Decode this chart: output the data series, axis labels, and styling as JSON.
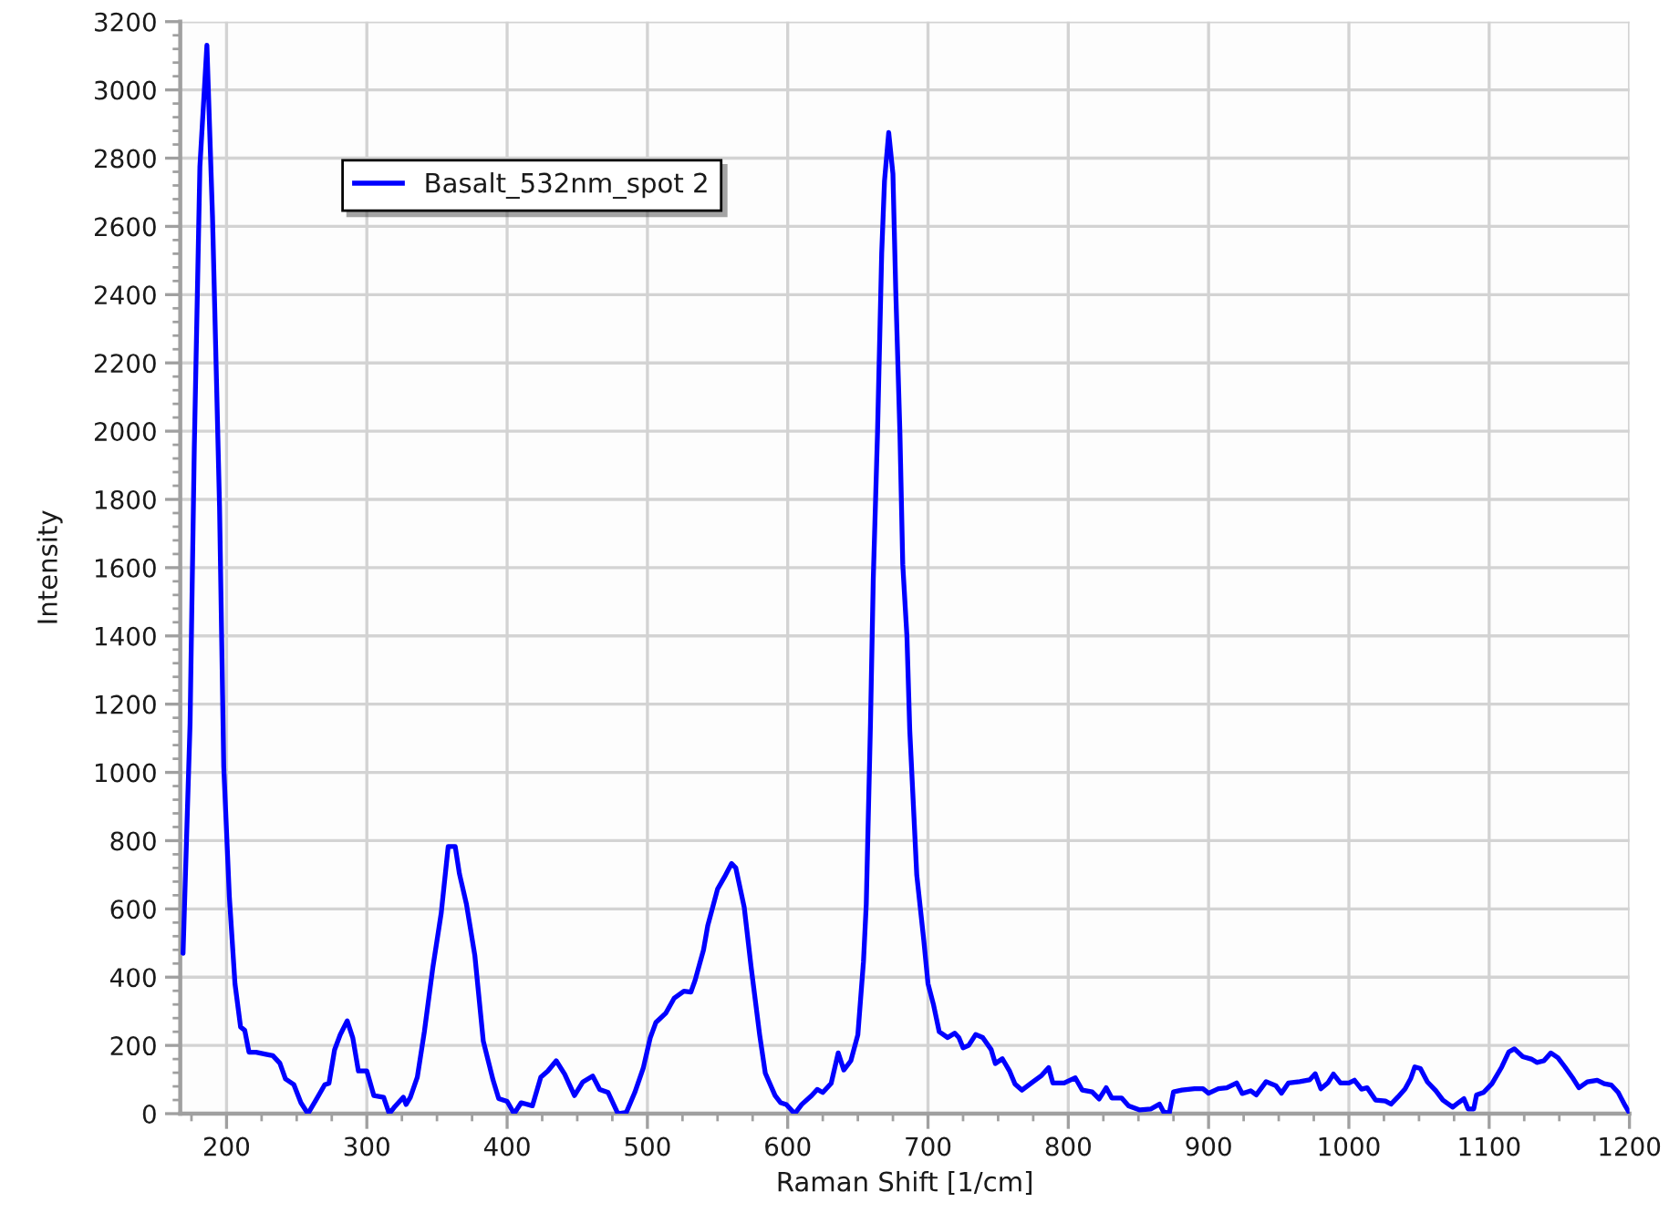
{
  "chart_data": {
    "type": "line",
    "xlabel": "Raman Shift [1/cm]",
    "ylabel": "Intensity",
    "legend": "top left",
    "grid": true,
    "xlim": [
      167,
      1200
    ],
    "ylim": [
      0,
      3200
    ],
    "xticks": [
      {
        "value": 175,
        "label": null
      },
      200,
      {
        "value": 225,
        "label": null
      },
      {
        "value": 250,
        "label": null
      },
      {
        "value": 275,
        "label": null
      },
      300,
      {
        "value": 325,
        "label": null
      },
      {
        "value": 350,
        "label": null
      },
      {
        "value": 375,
        "label": null
      },
      400,
      {
        "value": 425,
        "label": null
      },
      {
        "value": 450,
        "label": null
      },
      {
        "value": 475,
        "label": null
      },
      500,
      {
        "value": 525,
        "label": null
      },
      {
        "value": 550,
        "label": null
      },
      {
        "value": 575,
        "label": null
      },
      600,
      {
        "value": 625,
        "label": null
      },
      {
        "value": 650,
        "label": null
      },
      {
        "value": 675,
        "label": null
      },
      700,
      {
        "value": 725,
        "label": null
      },
      {
        "value": 750,
        "label": null
      },
      {
        "value": 775,
        "label": null
      },
      800,
      {
        "value": 825,
        "label": null
      },
      {
        "value": 850,
        "label": null
      },
      {
        "value": 875,
        "label": null
      },
      900,
      {
        "value": 925,
        "label": null
      },
      {
        "value": 950,
        "label": null
      },
      {
        "value": 975,
        "label": null
      },
      1000,
      {
        "value": 1025,
        "label": null
      },
      {
        "value": 1050,
        "label": null
      },
      {
        "value": 1075,
        "label": null
      },
      1100,
      {
        "value": 1125,
        "label": null
      },
      {
        "value": 1150,
        "label": null
      },
      {
        "value": 1175,
        "label": null
      },
      1200
    ],
    "yticks": [
      0,
      {
        "value": 40,
        "label": null
      },
      {
        "value": 80,
        "label": null
      },
      {
        "value": 120,
        "label": null
      },
      {
        "value": 160,
        "label": null
      },
      200,
      {
        "value": 240,
        "label": null
      },
      {
        "value": 280,
        "label": null
      },
      {
        "value": 320,
        "label": null
      },
      {
        "value": 360,
        "label": null
      },
      400,
      {
        "value": 440,
        "label": null
      },
      {
        "value": 480,
        "label": null
      },
      {
        "value": 520,
        "label": null
      },
      {
        "value": 560,
        "label": null
      },
      600,
      {
        "value": 640,
        "label": null
      },
      {
        "value": 680,
        "label": null
      },
      {
        "value": 720,
        "label": null
      },
      {
        "value": 760,
        "label": null
      },
      800,
      {
        "value": 840,
        "label": null
      },
      {
        "value": 880,
        "label": null
      },
      {
        "value": 920,
        "label": null
      },
      {
        "value": 960,
        "label": null
      },
      1000,
      {
        "value": 1040,
        "label": null
      },
      {
        "value": 1080,
        "label": null
      },
      {
        "value": 1120,
        "label": null
      },
      {
        "value": 1160,
        "label": null
      },
      1200,
      {
        "value": 1240,
        "label": null
      },
      {
        "value": 1280,
        "label": null
      },
      {
        "value": 1320,
        "label": null
      },
      {
        "value": 1360,
        "label": null
      },
      1400,
      {
        "value": 1440,
        "label": null
      },
      {
        "value": 1480,
        "label": null
      },
      {
        "value": 1520,
        "label": null
      },
      {
        "value": 1560,
        "label": null
      },
      1600,
      {
        "value": 1640,
        "label": null
      },
      {
        "value": 1680,
        "label": null
      },
      {
        "value": 1720,
        "label": null
      },
      {
        "value": 1760,
        "label": null
      },
      1800,
      {
        "value": 1840,
        "label": null
      },
      {
        "value": 1880,
        "label": null
      },
      {
        "value": 1920,
        "label": null
      },
      {
        "value": 1960,
        "label": null
      },
      2000,
      {
        "value": 2040,
        "label": null
      },
      {
        "value": 2080,
        "label": null
      },
      {
        "value": 2120,
        "label": null
      },
      {
        "value": 2160,
        "label": null
      },
      2200,
      {
        "value": 2240,
        "label": null
      },
      {
        "value": 2280,
        "label": null
      },
      {
        "value": 2320,
        "label": null
      },
      {
        "value": 2360,
        "label": null
      },
      2400,
      {
        "value": 2440,
        "label": null
      },
      {
        "value": 2480,
        "label": null
      },
      {
        "value": 2520,
        "label": null
      },
      {
        "value": 2560,
        "label": null
      },
      2600,
      {
        "value": 2640,
        "label": null
      },
      {
        "value": 2680,
        "label": null
      },
      {
        "value": 2720,
        "label": null
      },
      {
        "value": 2760,
        "label": null
      },
      2800,
      {
        "value": 2840,
        "label": null
      },
      {
        "value": 2880,
        "label": null
      },
      {
        "value": 2920,
        "label": null
      },
      {
        "value": 2960,
        "label": null
      },
      3000,
      {
        "value": 3040,
        "label": null
      },
      {
        "value": 3080,
        "label": null
      },
      {
        "value": 3120,
        "label": null
      },
      {
        "value": 3160,
        "label": null
      },
      3200
    ],
    "x": [
      169,
      174,
      177,
      181,
      186,
      190,
      195,
      198,
      202,
      206,
      210,
      213,
      216,
      221,
      228,
      233,
      238,
      242,
      248,
      253,
      258,
      264,
      270,
      273,
      277,
      281,
      286,
      290,
      294,
      300,
      305,
      312,
      316,
      320,
      326,
      328,
      331,
      336,
      341,
      347,
      353,
      358,
      363,
      366,
      371,
      377,
      383,
      390,
      394,
      400,
      405,
      410,
      418,
      424,
      429,
      435,
      441,
      448,
      454,
      461,
      466,
      472,
      479,
      485,
      491,
      497,
      502,
      506,
      513,
      519,
      526,
      531,
      534,
      540,
      543,
      550,
      555,
      560,
      563,
      569,
      574,
      580,
      584,
      591,
      595,
      599,
      605,
      610,
      617,
      621,
      625,
      631,
      636,
      640,
      645,
      650,
      654,
      656,
      659,
      661,
      664,
      667,
      669,
      672,
      675,
      677,
      680,
      682,
      685,
      687,
      690,
      692,
      697,
      700,
      704,
      708,
      714,
      719,
      722,
      725,
      729,
      734,
      739,
      745,
      748,
      753,
      758,
      762,
      767,
      775,
      781,
      786,
      789,
      797,
      805,
      810,
      817,
      822,
      827,
      831,
      838,
      843,
      851,
      859,
      865,
      868,
      872,
      875,
      881,
      890,
      896,
      900,
      907,
      913,
      920,
      924,
      930,
      934,
      941,
      948,
      952,
      957,
      965,
      972,
      976,
      980,
      985,
      989,
      994,
      1000,
      1004,
      1009,
      1013,
      1019,
      1026,
      1030,
      1035,
      1040,
      1044,
      1047,
      1051,
      1056,
      1062,
      1067,
      1074,
      1078,
      1082,
      1085,
      1089,
      1091,
      1096,
      1102,
      1109,
      1114,
      1118,
      1124,
      1130,
      1134,
      1139,
      1144,
      1149,
      1154,
      1160,
      1164,
      1170,
      1177,
      1182,
      1187,
      1192,
      1197,
      1200
    ],
    "series": [
      {
        "name": "Basalt_532nm_spot 2",
        "color": "#0000ff",
        "values": [
          470,
          1144,
          1949,
          2775,
          3131,
          2627,
          1780,
          1017,
          636,
          381,
          254,
          244,
          180,
          180,
          174,
          170,
          148,
          102,
          85,
          32,
          0,
          42,
          85,
          89,
          187,
          231,
          272,
          222,
          125,
          125,
          53,
          48,
          0,
          21,
          48,
          27,
          48,
          107,
          240,
          427,
          587,
          783,
          783,
          703,
          614,
          463,
          213,
          98,
          44,
          36,
          0,
          32,
          23,
          107,
          125,
          155,
          116,
          53,
          93,
          110,
          71,
          62,
          0,
          4,
          62,
          133,
          222,
          267,
          294,
          338,
          359,
          356,
          391,
          480,
          551,
          658,
          694,
          733,
          720,
          605,
          427,
          231,
          119,
          53,
          32,
          27,
          0,
          27,
          53,
          71,
          62,
          89,
          178,
          128,
          155,
          231,
          445,
          614,
          1144,
          1568,
          1992,
          2522,
          2733,
          2875,
          2754,
          2415,
          1992,
          1610,
          1398,
          1123,
          869,
          699,
          508,
          381,
          318,
          240,
          223,
          236,
          223,
          193,
          200,
          232,
          223,
          188,
          147,
          161,
          126,
          87,
          69,
          94,
          112,
          135,
          90,
          90,
          105,
          69,
          64,
          43,
          76,
          46,
          46,
          23,
          11,
          14,
          28,
          5,
          2,
          64,
          69,
          73,
          73,
          60,
          73,
          76,
          90,
          59,
          67,
          55,
          94,
          82,
          60,
          90,
          94,
          99,
          117,
          73,
          90,
          116,
          90,
          90,
          98,
          72,
          76,
          40,
          37,
          28,
          49,
          72,
          102,
          137,
          132,
          93,
          67,
          40,
          19,
          32,
          44,
          14,
          14,
          55,
          62,
          88,
          137,
          181,
          190,
          167,
          160,
          150,
          155,
          178,
          164,
          137,
          102,
          76,
          93,
          98,
          88,
          84,
          62,
          23,
          2
        ]
      }
    ]
  }
}
